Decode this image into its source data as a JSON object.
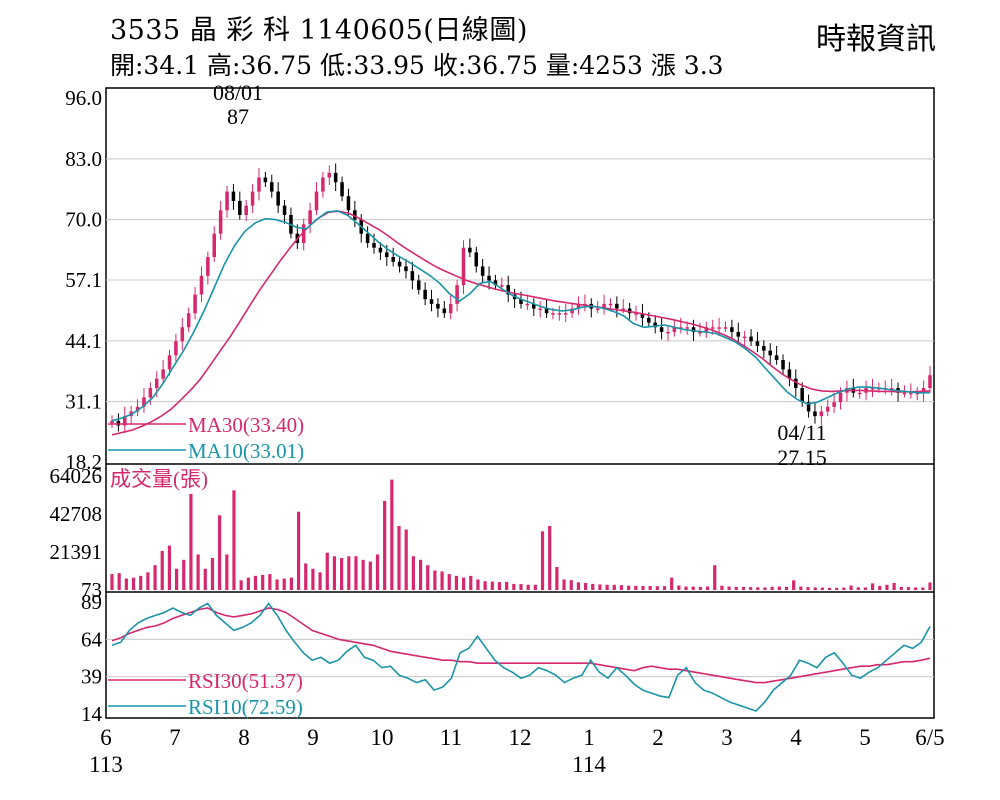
{
  "header": {
    "title": "3535  晶 彩 科 1140605(日線圖)",
    "ohlc": "開:34.1 高:36.75 低:33.95 收:36.75 量:4253 漲 3.3",
    "source": "時報資訊"
  },
  "chart_data": {
    "type": "candlestick",
    "price_panel": {
      "y_ticks": [
        "96.0",
        "83.0",
        "70.0",
        "57.1",
        "44.1",
        "31.1",
        "18.2"
      ],
      "ylim": [
        18.2,
        96.0
      ],
      "annotations": [
        {
          "date": "08/01",
          "value": "87",
          "kind": "high"
        },
        {
          "date": "04/11",
          "value": "27.15",
          "kind": "low"
        }
      ],
      "close_approx": [
        27,
        26,
        28,
        29,
        30,
        32,
        34,
        36,
        38,
        41,
        44,
        47,
        50,
        54,
        58,
        62,
        67,
        72,
        76,
        74,
        71,
        73,
        76,
        79,
        78,
        76,
        73,
        71,
        67,
        65,
        69,
        72,
        76,
        79,
        80,
        78,
        75,
        72,
        70,
        67,
        65,
        64,
        63,
        62,
        61,
        60,
        59,
        57,
        55,
        53,
        52,
        51,
        50,
        52,
        56,
        64,
        63,
        60,
        58,
        57,
        56,
        56,
        54,
        53,
        52,
        52,
        51,
        51,
        50,
        50,
        50,
        50,
        51,
        52,
        52,
        51,
        51,
        52,
        52,
        51,
        51,
        50,
        50,
        49,
        48,
        47,
        46,
        46,
        47,
        47,
        47,
        46,
        46,
        47,
        47,
        47,
        47,
        46,
        45,
        45,
        44,
        43,
        42,
        41,
        40,
        38,
        36,
        34,
        31,
        29,
        28,
        29,
        30,
        31,
        33,
        34,
        33,
        33,
        34,
        34,
        34,
        34,
        34,
        33,
        33,
        33,
        33,
        34,
        36.75
      ],
      "ma30_approx": [
        24,
        24.5,
        25,
        25.8,
        26.8,
        28,
        29.5,
        31.5,
        33.6,
        36,
        39,
        42,
        45,
        48.3,
        51.7,
        55,
        58,
        61,
        63.8,
        66.4,
        68.6,
        70.4,
        71.6,
        71.8,
        71.4,
        70.4,
        69.2,
        68,
        66.6,
        65,
        63.6,
        62.3,
        61,
        59.8,
        58.8,
        57.9,
        57,
        56.3,
        55.7,
        55.1,
        54.6,
        54.2,
        53.8,
        53.4,
        53,
        52.6,
        52.3,
        52,
        51.7,
        51.4,
        51.1,
        50.8,
        50.5,
        50.2,
        49.8,
        49.4,
        49,
        48.6,
        48.1,
        47.6,
        47,
        46.3,
        45.5,
        44.5,
        43.2,
        41.8,
        40.3,
        38.6,
        37,
        35.7,
        34.6,
        33.8,
        33.4,
        33.3,
        33.4,
        33.5,
        33.5,
        33.4,
        33.3,
        33.3,
        33.2,
        33.2,
        33.3,
        33.4
      ],
      "ma10_approx": [
        27,
        27.6,
        28.5,
        30,
        32,
        35,
        38.5,
        42,
        46,
        50.5,
        55.5,
        60.5,
        64.5,
        67.5,
        69.3,
        70.2,
        70,
        69.4,
        68.4,
        68,
        70,
        71.6,
        71.9,
        71,
        69.2,
        67.3,
        65.3,
        63.6,
        62.2,
        61,
        59.6,
        58.2,
        56.5,
        54.2,
        52.6,
        54.2,
        56.4,
        56.8,
        55.4,
        54,
        53,
        52.2,
        51.4,
        50.8,
        50.5,
        50.7,
        51.3,
        51.5,
        51.1,
        50.4,
        49.5,
        47.8,
        47,
        47.2,
        47.5,
        47,
        46.5,
        46.2,
        46,
        45.7,
        44.8,
        43.8,
        42.3,
        40.5,
        38,
        35.6,
        33.2,
        31.6,
        30.6,
        31,
        32,
        33,
        33.8,
        34.2,
        34.2,
        34,
        33.7,
        33.4,
        33.2,
        33.0,
        33.01
      ],
      "legend": [
        {
          "name": "MA30(33.40)",
          "color": "#d6286e"
        },
        {
          "name": "MA10(33.01)",
          "color": "#1a94a8"
        }
      ]
    },
    "volume_panel": {
      "title": "成交量(張)",
      "y_ticks": [
        "64026",
        "42708",
        "21391",
        "73"
      ],
      "ylim": [
        73,
        64026
      ],
      "values_approx": [
        9000,
        9500,
        6500,
        7000,
        8000,
        10000,
        14000,
        22000,
        25000,
        12000,
        17000,
        54000,
        20000,
        12000,
        18000,
        42000,
        20000,
        56000,
        5500,
        7000,
        8000,
        8500,
        9000,
        6000,
        6500,
        7000,
        44000,
        15000,
        12000,
        10000,
        21000,
        19000,
        18000,
        19000,
        19000,
        17000,
        16000,
        20000,
        50000,
        62000,
        36000,
        34000,
        19000,
        17000,
        14000,
        11000,
        10500,
        9000,
        8000,
        7000,
        8000,
        6000,
        5000,
        4800,
        4500,
        4600,
        3500,
        3400,
        3000,
        3000,
        33000,
        36000,
        13000,
        6000,
        5600,
        4400,
        4000,
        3500,
        3200,
        3000,
        3000,
        2800,
        2500,
        2400,
        2300,
        2300,
        2200,
        2200,
        7000,
        2600,
        2000,
        2000,
        1800,
        2000,
        14000,
        2500,
        2000,
        1800,
        1800,
        1700,
        1600,
        1500,
        1900,
        2000,
        1800,
        5500,
        2000,
        1700,
        1500,
        1400,
        1300,
        1300,
        1400,
        2600,
        1600,
        1500,
        3800,
        2400,
        3000,
        4000,
        1800,
        1700,
        1500,
        1500,
        4253
      ]
    },
    "rsi_panel": {
      "y_ticks": [
        "89",
        "64",
        "39",
        "14"
      ],
      "ylim": [
        14,
        89
      ],
      "rsi30_approx": [
        63,
        65,
        68,
        70,
        72,
        73,
        75,
        78,
        80,
        82,
        84,
        85,
        82,
        80,
        79,
        80,
        81,
        83,
        85,
        84,
        82,
        78,
        74,
        70,
        68,
        66,
        64,
        63,
        62,
        61,
        60,
        58,
        56,
        55,
        54,
        53,
        52,
        51,
        50,
        50,
        49,
        49,
        48,
        48,
        48,
        48,
        48,
        48,
        48,
        48,
        48,
        48,
        48,
        48,
        48,
        48,
        47,
        46,
        45,
        44,
        43,
        45,
        46,
        45,
        44,
        44,
        43,
        42,
        41,
        40,
        39,
        38,
        37,
        36,
        35,
        35,
        36,
        37,
        38,
        39,
        40,
        41,
        42,
        43,
        44,
        45,
        46,
        46,
        47,
        47,
        48,
        49,
        49,
        50,
        51.37
      ],
      "rsi10_approx": [
        60,
        62,
        70,
        75,
        78,
        80,
        82,
        85,
        82,
        80,
        85,
        88,
        80,
        75,
        70,
        72,
        75,
        80,
        88,
        80,
        70,
        62,
        55,
        50,
        52,
        48,
        50,
        56,
        60,
        52,
        50,
        45,
        46,
        40,
        38,
        35,
        37,
        30,
        32,
        38,
        55,
        58,
        66,
        58,
        50,
        45,
        42,
        38,
        40,
        45,
        43,
        40,
        35,
        38,
        40,
        50,
        42,
        38,
        45,
        40,
        34,
        30,
        28,
        26,
        25,
        40,
        45,
        35,
        30,
        28,
        25,
        22,
        20,
        18,
        16,
        22,
        30,
        35,
        40,
        50,
        48,
        45,
        52,
        55,
        48,
        40,
        38,
        42,
        45,
        50,
        55,
        60,
        58,
        62,
        72.59
      ],
      "legend": [
        {
          "name": "RSI30(51.37)",
          "color": "#d6286e"
        },
        {
          "name": "RSI10(72.59)",
          "color": "#1a94a8"
        }
      ]
    },
    "x_ticks": [
      {
        "label": "6",
        "sub": "113"
      },
      {
        "label": "7",
        "sub": ""
      },
      {
        "label": "8",
        "sub": ""
      },
      {
        "label": "9",
        "sub": ""
      },
      {
        "label": "10",
        "sub": ""
      },
      {
        "label": "11",
        "sub": ""
      },
      {
        "label": "12",
        "sub": ""
      },
      {
        "label": "1",
        "sub": "114"
      },
      {
        "label": "2",
        "sub": ""
      },
      {
        "label": "3",
        "sub": ""
      },
      {
        "label": "4",
        "sub": ""
      },
      {
        "label": "5",
        "sub": ""
      },
      {
        "label": "6/5",
        "sub": ""
      }
    ],
    "colors": {
      "up": "#d6286e",
      "down": "#000000",
      "ma30": "#d6286e",
      "ma10": "#1a94a8",
      "grid": "#c8c8c8"
    }
  }
}
